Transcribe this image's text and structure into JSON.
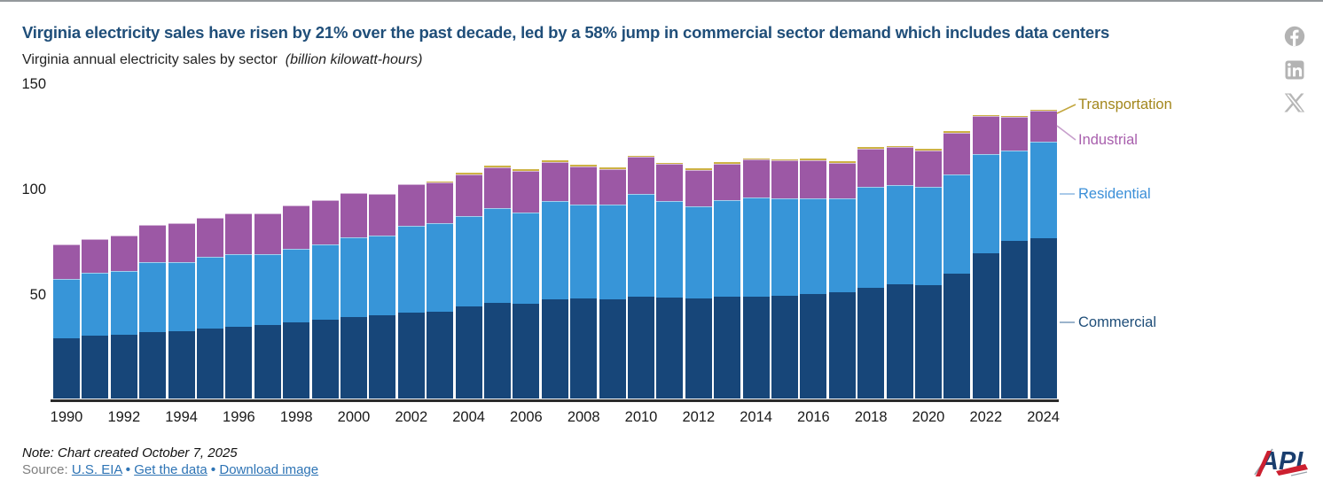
{
  "chart_data": {
    "type": "bar",
    "stacked": true,
    "title": "Virginia electricity sales have risen by 21% over the past decade, led by a 58% jump in commercial sector demand which includes data centers",
    "subtitle": "Virginia annual electricity sales by sector",
    "subtitle_unit": "(billion kilowatt-hours)",
    "unit": "billion kilowatt-hours",
    "grid": false,
    "legend_position": "right",
    "ylim": [
      0,
      150
    ],
    "yticks": [
      50,
      100,
      150
    ],
    "ytick_top_label": "150",
    "x": [
      1990,
      1991,
      1992,
      1993,
      1994,
      1995,
      1996,
      1997,
      1998,
      1999,
      2000,
      2001,
      2002,
      2003,
      2004,
      2005,
      2006,
      2007,
      2008,
      2009,
      2010,
      2011,
      2012,
      2013,
      2014,
      2015,
      2016,
      2017,
      2018,
      2019,
      2020,
      2021,
      2022,
      2023,
      2024
    ],
    "x_tick_labels": [
      "1990",
      "1992",
      "1994",
      "1996",
      "1998",
      "2000",
      "2002",
      "2004",
      "2006",
      "2008",
      "2010",
      "2012",
      "2014",
      "2016",
      "2018",
      "2020",
      "2022",
      "2024"
    ],
    "series": [
      {
        "name": "Commercial",
        "color": "#174679",
        "label_color": "#1F4E79",
        "values": [
          28.6,
          29.8,
          30.3,
          31.4,
          32.1,
          33.1,
          34.0,
          34.7,
          36.3,
          37.3,
          38.7,
          39.4,
          40.8,
          41.2,
          43.6,
          45.2,
          45.0,
          47.1,
          47.4,
          47.1,
          48.5,
          47.8,
          47.5,
          48.5,
          48.2,
          48.7,
          49.5,
          50.6,
          52.7,
          54.3,
          53.8,
          59.4,
          68.8,
          74.8,
          76.2
        ]
      },
      {
        "name": "Residential",
        "color": "#3795D8",
        "label_color": "#3B8FD8",
        "values": [
          28.3,
          29.9,
          30.1,
          33.2,
          32.8,
          34.0,
          34.6,
          33.6,
          34.8,
          35.9,
          37.8,
          37.8,
          41.3,
          41.9,
          43.1,
          45.0,
          43.1,
          46.5,
          44.5,
          45.1,
          48.7,
          45.8,
          43.7,
          45.5,
          47.0,
          46.3,
          45.6,
          44.4,
          47.9,
          47.1,
          46.5,
          46.9,
          47.2,
          43.0,
          45.5
        ]
      },
      {
        "name": "Industrial",
        "color": "#9C58A5",
        "label_color": "#A85FAD",
        "values": [
          16.3,
          16.1,
          16.8,
          17.8,
          18.3,
          18.8,
          19.4,
          19.7,
          20.4,
          20.8,
          21.0,
          19.9,
          19.6,
          19.3,
          19.6,
          19.6,
          19.9,
          18.6,
          18.4,
          16.7,
          17.4,
          17.6,
          17.2,
          17.5,
          18.2,
          17.9,
          17.9,
          16.8,
          18.1,
          17.8,
          17.4,
          19.9,
          17.9,
          15.7,
          14.8
        ]
      },
      {
        "name": "Transportation",
        "color": "#CDB245",
        "label_color": "#A3871C",
        "values": [
          0,
          0,
          0,
          0,
          0,
          0,
          0,
          0,
          0,
          0,
          0,
          0,
          0,
          0.1,
          0.1,
          0.1,
          0.1,
          0.1,
          0.1,
          0.1,
          0.1,
          0.1,
          0.1,
          0.1,
          0.1,
          0.1,
          0.1,
          0.1,
          0.2,
          0.2,
          0.2,
          0.2,
          0.3,
          0.3,
          0.6
        ]
      }
    ]
  },
  "social": {
    "facebook_glyph": "f",
    "linkedin_glyph": "in"
  },
  "footer": {
    "note": "Note: Chart created October 7, 2025",
    "source_label": "Source:",
    "link_eia": "U.S. EIA",
    "link_get_data": "Get the data",
    "link_download": "Download image",
    "separator": "•"
  },
  "logo": {
    "text": "API"
  }
}
